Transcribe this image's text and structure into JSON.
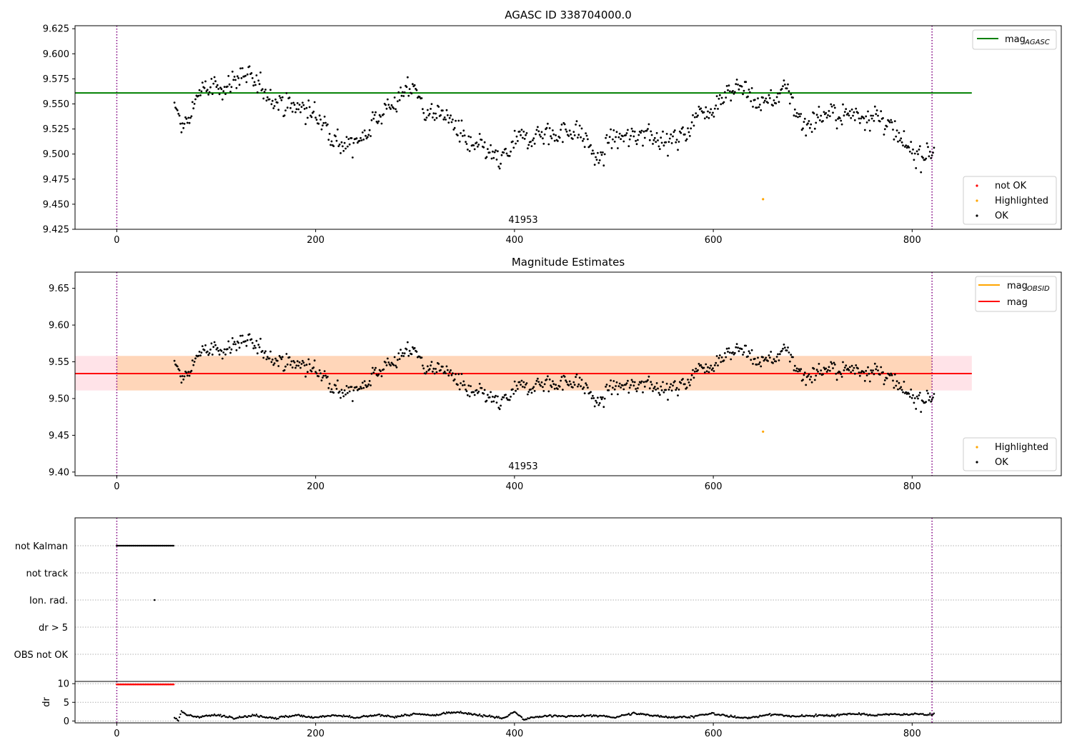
{
  "chart_data": [
    {
      "type": "scatter",
      "title": "AGASC ID 338704000.0",
      "x_range": [
        -42,
        950
      ],
      "ylim": [
        9.425,
        9.628
      ],
      "x_ticks": [
        0,
        200,
        400,
        600,
        800
      ],
      "y_ticks": [
        9.425,
        9.45,
        9.475,
        9.5,
        9.525,
        9.55,
        9.575,
        9.6,
        9.625
      ],
      "y_tick_labels": [
        "9.425",
        "9.450",
        "9.475",
        "9.500",
        "9.525",
        "9.550",
        "9.575",
        "9.600",
        "9.625"
      ],
      "vlines": [
        0,
        820
      ],
      "hlines": [
        {
          "name": "mag_AGASC",
          "y": 9.561,
          "x_range": [
            -42,
            860
          ],
          "color": "#008000"
        }
      ],
      "obsid_label": {
        "text": "41953",
        "x": 410
      },
      "legend_upper": {
        "position": "upper-right",
        "entries": [
          {
            "label": "mag",
            "sub": "AGASC",
            "color": "#008000",
            "kind": "line"
          }
        ]
      },
      "legend_lower": {
        "position": "lower-right",
        "entries": [
          {
            "label": "not OK",
            "color": "#ff0000",
            "kind": "dot"
          },
          {
            "label": "Highlighted",
            "color": "#ffa500",
            "kind": "dot"
          },
          {
            "label": "OK",
            "color": "#000000",
            "kind": "dot"
          }
        ]
      },
      "series": [
        {
          "name": "OK",
          "color": "#000000",
          "x_start": 58,
          "x_end": 822,
          "count": 760,
          "anchors": [
            [
              58,
              9.545
            ],
            [
              65,
              9.53
            ],
            [
              72,
              9.53
            ],
            [
              80,
              9.56
            ],
            [
              95,
              9.565
            ],
            [
              110,
              9.568
            ],
            [
              125,
              9.58
            ],
            [
              140,
              9.568
            ],
            [
              155,
              9.56
            ],
            [
              170,
              9.548
            ],
            [
              190,
              9.545
            ],
            [
              210,
              9.53
            ],
            [
              225,
              9.51
            ],
            [
              240,
              9.508
            ],
            [
              255,
              9.53
            ],
            [
              270,
              9.545
            ],
            [
              285,
              9.555
            ],
            [
              298,
              9.57
            ],
            [
              310,
              9.542
            ],
            [
              325,
              9.54
            ],
            [
              340,
              9.53
            ],
            [
              355,
              9.505
            ],
            [
              370,
              9.505
            ],
            [
              385,
              9.49
            ],
            [
              400,
              9.51
            ],
            [
              420,
              9.52
            ],
            [
              440,
              9.52
            ],
            [
              460,
              9.525
            ],
            [
              475,
              9.51
            ],
            [
              485,
              9.49
            ],
            [
              495,
              9.515
            ],
            [
              515,
              9.515
            ],
            [
              535,
              9.525
            ],
            [
              555,
              9.51
            ],
            [
              570,
              9.52
            ],
            [
              585,
              9.54
            ],
            [
              600,
              9.548
            ],
            [
              615,
              9.565
            ],
            [
              630,
              9.565
            ],
            [
              645,
              9.55
            ],
            [
              660,
              9.555
            ],
            [
              675,
              9.565
            ],
            [
              690,
              9.528
            ],
            [
              710,
              9.54
            ],
            [
              725,
              9.538
            ],
            [
              745,
              9.54
            ],
            [
              760,
              9.54
            ],
            [
              775,
              9.53
            ],
            [
              790,
              9.508
            ],
            [
              805,
              9.5
            ],
            [
              822,
              9.505
            ]
          ],
          "noise": 0.014
        },
        {
          "name": "Highlighted",
          "color": "#ffa500",
          "points": [
            [
              650,
              9.455
            ]
          ]
        }
      ]
    },
    {
      "type": "scatter",
      "title": "Magnitude Estimates",
      "x_range": [
        -42,
        950
      ],
      "ylim": [
        9.395,
        9.672
      ],
      "x_ticks": [
        0,
        200,
        400,
        600,
        800
      ],
      "y_ticks": [
        9.4,
        9.45,
        9.5,
        9.55,
        9.6,
        9.65
      ],
      "y_tick_labels": [
        "9.40",
        "9.45",
        "9.50",
        "9.55",
        "9.60",
        "9.65"
      ],
      "vlines": [
        0,
        820
      ],
      "band_pink": {
        "y0": 9.511,
        "y1": 9.558,
        "x_range": [
          -42,
          860
        ],
        "color": "#ffc0cb"
      },
      "band_orange": {
        "y0": 9.511,
        "y1": 9.558,
        "x_range": [
          0,
          820
        ],
        "color": "#ffa500"
      },
      "hlines": [
        {
          "name": "mag_OBSID",
          "y": 9.534,
          "x_range": [
            0,
            820
          ],
          "color": "#ffa500"
        },
        {
          "name": "mag",
          "y": 9.534,
          "x_range": [
            -42,
            860
          ],
          "color": "#ff0000"
        }
      ],
      "obsid_label": {
        "text": "41953",
        "x": 410
      },
      "legend_upper": {
        "position": "upper-right",
        "entries": [
          {
            "label": "mag",
            "sub": "OBSID",
            "color": "#ffa500",
            "kind": "line"
          },
          {
            "label": "mag",
            "sub": "",
            "color": "#ff0000",
            "kind": "line"
          }
        ]
      },
      "legend_lower": {
        "position": "lower-right",
        "entries": [
          {
            "label": "Highlighted",
            "color": "#ffa500",
            "kind": "dot"
          },
          {
            "label": "OK",
            "color": "#000000",
            "kind": "dot"
          }
        ]
      },
      "series": [
        {
          "name": "OK",
          "color": "#000000",
          "same_as_panel": 0
        },
        {
          "name": "Highlighted",
          "color": "#ffa500",
          "points": [
            [
              650,
              9.455
            ]
          ]
        }
      ]
    },
    {
      "type": "scatter",
      "title": "",
      "x_range": [
        -42,
        950
      ],
      "categories": [
        "not Kalman",
        "not track",
        "Ion. rad.",
        "dr > 5",
        "OBS not OK"
      ],
      "flags": [
        {
          "category": "not Kalman",
          "x_start": 0,
          "x_end": 58,
          "color": "#000000"
        },
        {
          "category": "Ion. rad.",
          "points": [
            38
          ],
          "color": "#000000"
        }
      ],
      "vlines": [
        0,
        820
      ]
    },
    {
      "type": "scatter",
      "title": "",
      "x_range": [
        -42,
        950
      ],
      "ylim": [
        -0.5,
        10.6
      ],
      "x_ticks": [
        0,
        200,
        400,
        600,
        800
      ],
      "y_ticks": [
        0,
        5,
        10
      ],
      "y_tick_labels": [
        "0",
        "5",
        "10"
      ],
      "ylabel": "dr",
      "vlines": [
        0,
        820
      ],
      "series": [
        {
          "name": "dr flagged",
          "color": "#ff0000",
          "x_start": 0,
          "x_end": 58,
          "y": 9.8
        },
        {
          "name": "dr",
          "color": "#000000",
          "x_start": 58,
          "x_end": 822,
          "count": 760,
          "anchors": [
            [
              58,
              1.0
            ],
            [
              62,
              0.2
            ],
            [
              65,
              2.5
            ],
            [
              70,
              1.5
            ],
            [
              80,
              1.2
            ],
            [
              100,
              1.5
            ],
            [
              120,
              1.0
            ],
            [
              140,
              1.5
            ],
            [
              160,
              0.8
            ],
            [
              180,
              1.5
            ],
            [
              200,
              1.0
            ],
            [
              220,
              1.5
            ],
            [
              240,
              0.8
            ],
            [
              260,
              1.5
            ],
            [
              280,
              1.2
            ],
            [
              300,
              1.8
            ],
            [
              320,
              1.5
            ],
            [
              340,
              2.5
            ],
            [
              360,
              1.8
            ],
            [
              380,
              1.0
            ],
            [
              390,
              0.8
            ],
            [
              400,
              2.5
            ],
            [
              410,
              0.3
            ],
            [
              420,
              1.0
            ],
            [
              440,
              1.5
            ],
            [
              460,
              1.2
            ],
            [
              480,
              1.5
            ],
            [
              500,
              1.0
            ],
            [
              520,
              2.0
            ],
            [
              540,
              1.5
            ],
            [
              560,
              1.0
            ],
            [
              580,
              1.2
            ],
            [
              600,
              2.0
            ],
            [
              620,
              1.0
            ],
            [
              640,
              1.0
            ],
            [
              660,
              1.8
            ],
            [
              680,
              1.2
            ],
            [
              700,
              1.5
            ],
            [
              720,
              1.5
            ],
            [
              740,
              2.0
            ],
            [
              760,
              1.5
            ],
            [
              780,
              1.8
            ],
            [
              800,
              1.8
            ],
            [
              822,
              1.8
            ]
          ],
          "noise": 0.35
        }
      ]
    }
  ]
}
